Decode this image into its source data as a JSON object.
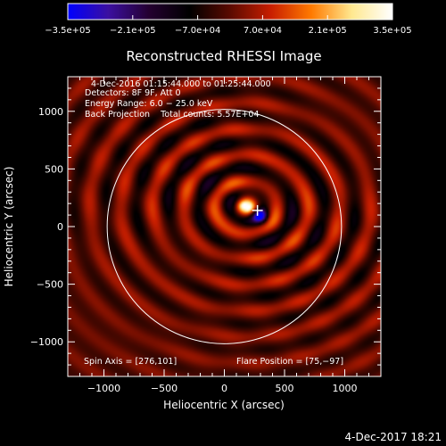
{
  "chart_data": {
    "type": "heatmap",
    "title": "Reconstructed RHESSI Image",
    "xlabel": "Heliocentric X (arcsec)",
    "ylabel": "Heliocentric Y (arcsec)",
    "xlim": [
      -1300,
      1300
    ],
    "ylim": [
      -1300,
      1300
    ],
    "x_ticks": [
      -1000,
      -500,
      0,
      500,
      1000
    ],
    "x_tick_labels": [
      "−1000",
      "−500",
      "0",
      "500",
      "1000"
    ],
    "y_ticks": [
      -1000,
      -500,
      0,
      500,
      1000
    ],
    "y_tick_labels": [
      "−1000",
      "−500",
      "0",
      "500",
      "1000"
    ],
    "colorbar": {
      "range": [
        -350000,
        350000
      ],
      "tick_labels": [
        "−3.5e+05",
        "−2.1e+05",
        "−7.0e+04",
        "7.0e+04",
        "2.1e+05",
        "3.5e+05"
      ],
      "stops": [
        "#0000ff",
        "#3b0fa0",
        "#240030",
        "#000000",
        "#5a0a00",
        "#c81e00",
        "#ff7a00",
        "#ffe890",
        "#ffffff"
      ]
    },
    "solar_disk_radius_arcsec": 973,
    "flare_position": [
      75,
      -97
    ],
    "peak_positive": [
      180,
      170
    ],
    "peak_negative": [
      300,
      90
    ],
    "grid": false
  },
  "info_lines": [
    "4-Dec-2016 01:15:44.000 to 01:25:44.000",
    "Detectors: 8F 9F, Att 0",
    "Energy Range: 6.0 − 25.0 keV",
    "Back Projection    Total counts: 5.57E+04"
  ],
  "spin_axis_text": "Spin Axis = [276,101]",
  "flare_position_text": "Flare Position = [75,−97]",
  "footer_date": "4-Dec-2017 18:21"
}
